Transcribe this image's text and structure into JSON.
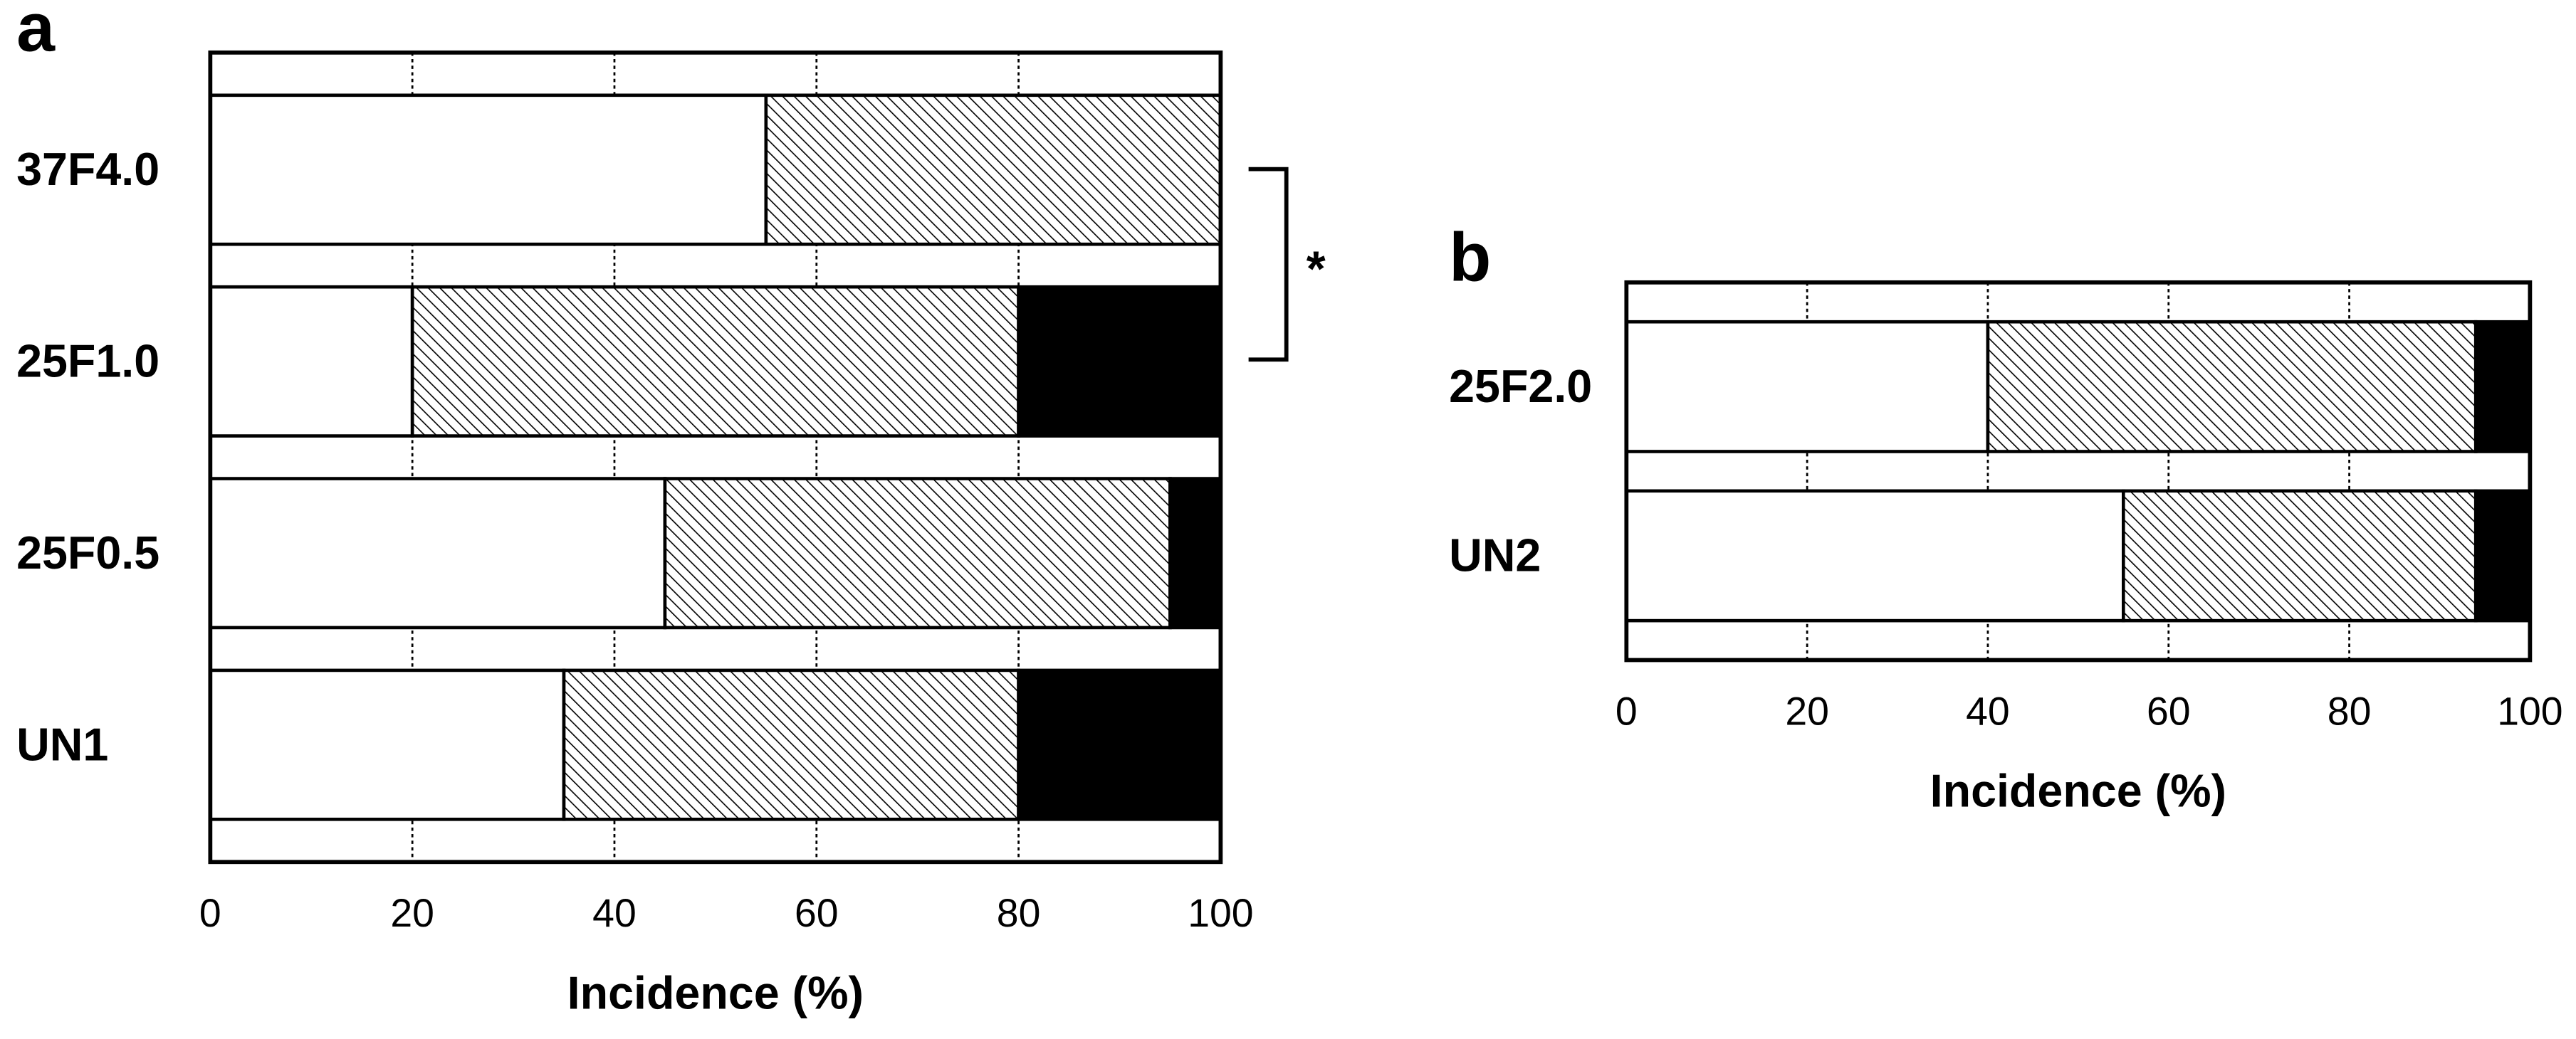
{
  "chart_data": [
    {
      "type": "bar",
      "horizontal": true,
      "panel": "a",
      "categories": [
        "37F4.0",
        "25F1.0",
        "25F0.5",
        "UN1"
      ],
      "series": [
        {
          "color": "#ffffff",
          "values": [
            55,
            20,
            45,
            35
          ]
        },
        {
          "color": "#000000",
          "hatch": true,
          "values": [
            45,
            60,
            50,
            45
          ]
        },
        {
          "color": "#000000",
          "values": [
            0,
            20,
            5,
            20
          ]
        }
      ],
      "xlim": [
        0,
        100
      ],
      "xticks": [
        0,
        20,
        40,
        60,
        80,
        100
      ],
      "grid": true,
      "xlabel": "Incidence (%)",
      "annotation": "*"
    },
    {
      "type": "bar",
      "horizontal": true,
      "panel": "b",
      "categories": [
        "25F2.0",
        "UN2"
      ],
      "series": [
        {
          "color": "#ffffff",
          "values": [
            40,
            55
          ]
        },
        {
          "color": "#000000",
          "hatch": true,
          "values": [
            54,
            39
          ]
        },
        {
          "color": "#000000",
          "values": [
            6,
            6
          ]
        }
      ],
      "xlim": [
        0,
        100
      ],
      "xticks": [
        0,
        20,
        40,
        60,
        80,
        100
      ],
      "grid": true,
      "xlabel": "Incidence (%)"
    }
  ]
}
